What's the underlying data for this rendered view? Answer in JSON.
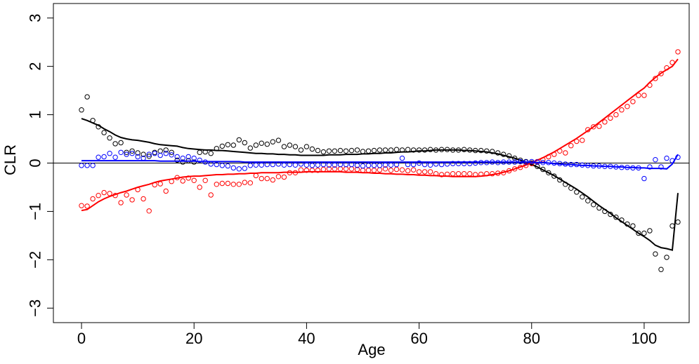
{
  "chart_data": {
    "type": "scatter",
    "title": "",
    "xlabel": "Age",
    "ylabel": "CLR",
    "xlim": [
      -5,
      108
    ],
    "ylim": [
      -3.3,
      3.3
    ],
    "x_ticks": [
      0,
      20,
      40,
      60,
      80,
      100
    ],
    "y_ticks": [
      -3,
      -2,
      -1,
      0,
      1,
      2,
      3
    ],
    "grid": false,
    "reference_lines": [
      {
        "axis": "y",
        "value": 0,
        "color": "#000000"
      }
    ],
    "x": [
      0,
      1,
      2,
      3,
      4,
      5,
      6,
      7,
      8,
      9,
      10,
      11,
      12,
      13,
      14,
      15,
      16,
      17,
      18,
      19,
      20,
      21,
      22,
      23,
      24,
      25,
      26,
      27,
      28,
      29,
      30,
      31,
      32,
      33,
      34,
      35,
      36,
      37,
      38,
      39,
      40,
      41,
      42,
      43,
      44,
      45,
      46,
      47,
      48,
      49,
      50,
      51,
      52,
      53,
      54,
      55,
      56,
      57,
      58,
      59,
      60,
      61,
      62,
      63,
      64,
      65,
      66,
      67,
      68,
      69,
      70,
      71,
      72,
      73,
      74,
      75,
      76,
      77,
      78,
      79,
      80,
      81,
      82,
      83,
      84,
      85,
      86,
      87,
      88,
      89,
      90,
      91,
      92,
      93,
      94,
      95,
      96,
      97,
      98,
      99,
      100,
      101,
      102,
      103,
      104,
      105,
      106
    ],
    "series": [
      {
        "color": "#000000",
        "points": [
          1.1,
          1.37,
          0.88,
          0.75,
          0.63,
          0.52,
          0.4,
          0.42,
          0.22,
          0.25,
          0.21,
          0.18,
          0.14,
          0.22,
          0.25,
          0.27,
          0.22,
          0.06,
          0.02,
          0.05,
          0.02,
          0.22,
          0.23,
          0.2,
          0.3,
          0.35,
          0.38,
          0.37,
          0.48,
          0.42,
          0.31,
          0.37,
          0.41,
          0.39,
          0.44,
          0.47,
          0.34,
          0.37,
          0.34,
          0.27,
          0.34,
          0.29,
          0.26,
          0.23,
          0.25,
          0.25,
          0.26,
          0.25,
          0.26,
          0.27,
          0.24,
          0.25,
          0.26,
          0.27,
          0.27,
          0.27,
          0.28,
          0.27,
          0.28,
          0.27,
          0.27,
          0.27,
          0.28,
          0.27,
          0.28,
          0.28,
          0.27,
          0.27,
          0.28,
          0.27,
          0.26,
          0.26,
          0.25,
          0.24,
          0.21,
          0.18,
          0.15,
          0.1,
          0.06,
          0.03,
          0.0,
          -0.07,
          -0.13,
          -0.2,
          -0.27,
          -0.35,
          -0.44,
          -0.52,
          -0.6,
          -0.7,
          -0.78,
          -0.86,
          -0.93,
          -1.0,
          -1.06,
          -1.12,
          -1.18,
          -1.26,
          -1.3,
          -1.45,
          -1.45,
          -1.4,
          -1.88,
          -2.2,
          -1.95,
          -1.3,
          -1.22
        ],
        "fit": [
          0.92,
          0.88,
          0.83,
          0.78,
          0.71,
          0.65,
          0.58,
          0.53,
          0.5,
          0.48,
          0.47,
          0.45,
          0.43,
          0.4,
          0.38,
          0.37,
          0.36,
          0.35,
          0.32,
          0.3,
          0.29,
          0.28,
          0.27,
          0.27,
          0.26,
          0.26,
          0.25,
          0.24,
          0.23,
          0.22,
          0.21,
          0.2,
          0.2,
          0.19,
          0.19,
          0.18,
          0.18,
          0.17,
          0.17,
          0.16,
          0.16,
          0.16,
          0.16,
          0.16,
          0.17,
          0.17,
          0.17,
          0.18,
          0.18,
          0.18,
          0.19,
          0.19,
          0.2,
          0.2,
          0.21,
          0.21,
          0.22,
          0.23,
          0.23,
          0.24,
          0.25,
          0.25,
          0.26,
          0.27,
          0.27,
          0.27,
          0.27,
          0.27,
          0.26,
          0.26,
          0.25,
          0.24,
          0.23,
          0.21,
          0.19,
          0.16,
          0.13,
          0.1,
          0.06,
          0.02,
          -0.03,
          -0.08,
          -0.14,
          -0.2,
          -0.26,
          -0.33,
          -0.4,
          -0.47,
          -0.54,
          -0.62,
          -0.7,
          -0.79,
          -0.88,
          -0.96,
          -1.04,
          -1.13,
          -1.21,
          -1.29,
          -1.37,
          -1.45,
          -1.52,
          -1.6,
          -1.7,
          -1.75,
          -1.77,
          -1.8,
          -0.62
        ]
      },
      {
        "color": "#ff0000",
        "points": [
          -0.88,
          -0.89,
          -0.74,
          -0.67,
          -0.61,
          -0.63,
          -0.67,
          -0.82,
          -0.66,
          -0.76,
          -0.55,
          -0.74,
          -0.99,
          -0.45,
          -0.43,
          -0.58,
          -0.38,
          -0.3,
          -0.37,
          -0.31,
          -0.36,
          -0.5,
          -0.36,
          -0.66,
          -0.44,
          -0.42,
          -0.42,
          -0.44,
          -0.44,
          -0.4,
          -0.41,
          -0.26,
          -0.32,
          -0.32,
          -0.35,
          -0.28,
          -0.29,
          -0.2,
          -0.2,
          -0.14,
          -0.15,
          -0.15,
          -0.15,
          -0.13,
          -0.12,
          -0.12,
          -0.12,
          -0.12,
          -0.12,
          -0.13,
          -0.15,
          -0.15,
          -0.15,
          -0.14,
          -0.12,
          -0.15,
          -0.13,
          -0.14,
          -0.16,
          -0.14,
          -0.18,
          -0.18,
          -0.18,
          -0.22,
          -0.24,
          -0.23,
          -0.22,
          -0.22,
          -0.22,
          -0.22,
          -0.24,
          -0.23,
          -0.22,
          -0.22,
          -0.21,
          -0.2,
          -0.16,
          -0.12,
          -0.09,
          -0.05,
          -0.01,
          0.03,
          0.07,
          0.13,
          0.18,
          0.25,
          0.21,
          0.36,
          0.45,
          0.47,
          0.69,
          0.75,
          0.76,
          0.85,
          0.93,
          1.0,
          1.1,
          1.17,
          1.27,
          1.4,
          1.4,
          1.61,
          1.75,
          1.85,
          1.97,
          2.08,
          2.3
        ],
        "fit": [
          -0.98,
          -0.96,
          -0.88,
          -0.8,
          -0.74,
          -0.69,
          -0.65,
          -0.61,
          -0.58,
          -0.54,
          -0.5,
          -0.47,
          -0.44,
          -0.4,
          -0.37,
          -0.35,
          -0.33,
          -0.31,
          -0.29,
          -0.28,
          -0.27,
          -0.27,
          -0.26,
          -0.25,
          -0.24,
          -0.24,
          -0.23,
          -0.23,
          -0.22,
          -0.22,
          -0.21,
          -0.21,
          -0.2,
          -0.2,
          -0.2,
          -0.2,
          -0.19,
          -0.19,
          -0.19,
          -0.19,
          -0.18,
          -0.18,
          -0.18,
          -0.18,
          -0.18,
          -0.18,
          -0.18,
          -0.19,
          -0.19,
          -0.19,
          -0.2,
          -0.2,
          -0.21,
          -0.21,
          -0.22,
          -0.22,
          -0.23,
          -0.23,
          -0.24,
          -0.24,
          -0.25,
          -0.25,
          -0.26,
          -0.26,
          -0.27,
          -0.27,
          -0.28,
          -0.28,
          -0.28,
          -0.28,
          -0.28,
          -0.27,
          -0.26,
          -0.24,
          -0.22,
          -0.19,
          -0.16,
          -0.12,
          -0.08,
          -0.04,
          0.01,
          0.06,
          0.11,
          0.17,
          0.23,
          0.3,
          0.37,
          0.44,
          0.51,
          0.59,
          0.67,
          0.75,
          0.84,
          0.93,
          1.02,
          1.11,
          1.2,
          1.29,
          1.38,
          1.47,
          1.55,
          1.67,
          1.77,
          1.86,
          1.93,
          2.0,
          2.15
        ]
      },
      {
        "color": "#0000ff",
        "points": [
          -0.05,
          -0.05,
          -0.05,
          0.12,
          0.13,
          0.2,
          0.12,
          0.22,
          0.18,
          0.2,
          0.13,
          0.1,
          0.18,
          0.2,
          0.16,
          0.2,
          0.17,
          0.13,
          0.1,
          0.13,
          0.1,
          0.06,
          0.02,
          -0.02,
          -0.03,
          -0.05,
          -0.06,
          -0.1,
          -0.12,
          -0.11,
          -0.05,
          -0.04,
          -0.04,
          -0.03,
          -0.03,
          -0.02,
          -0.04,
          -0.03,
          -0.04,
          -0.02,
          -0.04,
          -0.05,
          -0.04,
          -0.03,
          -0.04,
          -0.04,
          -0.03,
          -0.03,
          -0.03,
          -0.05,
          -0.06,
          -0.05,
          -0.05,
          -0.05,
          -0.04,
          -0.04,
          -0.03,
          0.1,
          -0.03,
          -0.03,
          0.0,
          -0.03,
          -0.04,
          -0.02,
          -0.03,
          -0.02,
          -0.01,
          -0.01,
          -0.01,
          -0.01,
          0.0,
          0.01,
          0.01,
          0.02,
          0.01,
          0.02,
          0.02,
          0.02,
          0.03,
          0.02,
          0.03,
          0.02,
          0.01,
          0.01,
          0.0,
          -0.01,
          -0.02,
          -0.03,
          -0.03,
          -0.04,
          -0.05,
          -0.06,
          -0.06,
          -0.07,
          -0.07,
          -0.08,
          -0.09,
          -0.09,
          -0.1,
          -0.1,
          -0.32,
          -0.08,
          0.07,
          -0.08,
          0.1,
          0.05,
          0.12
        ],
        "fit": [
          0.05,
          0.05,
          0.05,
          0.05,
          0.05,
          0.05,
          0.05,
          0.05,
          0.05,
          0.05,
          0.05,
          0.05,
          0.05,
          0.05,
          0.04,
          0.04,
          0.04,
          0.04,
          0.04,
          0.04,
          0.04,
          0.03,
          0.03,
          0.03,
          0.03,
          0.03,
          0.03,
          0.03,
          0.03,
          0.02,
          0.02,
          0.02,
          0.02,
          0.02,
          0.02,
          0.02,
          0.02,
          0.02,
          0.02,
          0.02,
          0.02,
          0.02,
          0.02,
          0.02,
          0.02,
          0.02,
          0.02,
          0.02,
          0.02,
          0.02,
          0.02,
          0.02,
          0.02,
          0.02,
          0.02,
          0.02,
          0.02,
          0.02,
          0.02,
          0.02,
          0.02,
          0.02,
          0.02,
          0.02,
          0.02,
          0.02,
          0.02,
          0.02,
          0.02,
          0.02,
          0.02,
          0.02,
          0.02,
          0.02,
          0.02,
          0.02,
          0.02,
          0.02,
          0.02,
          0.02,
          0.02,
          0.01,
          0.01,
          0.0,
          -0.01,
          -0.02,
          -0.03,
          -0.03,
          -0.04,
          -0.05,
          -0.05,
          -0.06,
          -0.06,
          -0.07,
          -0.07,
          -0.08,
          -0.08,
          -0.09,
          -0.09,
          -0.1,
          -0.1,
          -0.11,
          -0.11,
          -0.11,
          -0.12,
          -0.02,
          0.18
        ]
      }
    ]
  }
}
